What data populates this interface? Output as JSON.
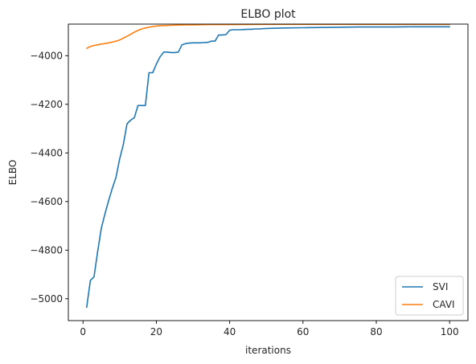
{
  "chart_data": {
    "type": "line",
    "title": "ELBO plot",
    "xlabel": "iterations",
    "ylabel": "ELBO",
    "xlim": [
      -4.0,
      105.0
    ],
    "ylim": [
      -5090,
      -3870
    ],
    "xticks": [
      0,
      20,
      40,
      60,
      80,
      100
    ],
    "yticks": [
      -5000,
      -4800,
      -4600,
      -4400,
      -4200,
      -4000
    ],
    "grid": false,
    "legend_position": "lower-right",
    "series": [
      {
        "name": "SVI",
        "color": "#1f77b4",
        "x": [
          1,
          2,
          3,
          4,
          5,
          6,
          7,
          8,
          9,
          10,
          11,
          12,
          13,
          14,
          15,
          16,
          17,
          18,
          19,
          20,
          21,
          22,
          23,
          24,
          25,
          26,
          27,
          28,
          29,
          30,
          31,
          32,
          33,
          34,
          35,
          36,
          37,
          38,
          39,
          40,
          41,
          42,
          43,
          44,
          45,
          46,
          47,
          48,
          50,
          55,
          60,
          65,
          70,
          75,
          80,
          85,
          90,
          95,
          100
        ],
        "y": [
          -5035,
          -4925,
          -4910,
          -4805,
          -4710,
          -4650,
          -4595,
          -4545,
          -4500,
          -4425,
          -4365,
          -4280,
          -4265,
          -4255,
          -4205,
          -4205,
          -4205,
          -4070,
          -4070,
          -4035,
          -4005,
          -3985,
          -3985,
          -3987,
          -3987,
          -3985,
          -3955,
          -3950,
          -3948,
          -3947,
          -3947,
          -3947,
          -3946,
          -3945,
          -3940,
          -3940,
          -3915,
          -3915,
          -3913,
          -3895,
          -3893,
          -3893,
          -3893,
          -3892,
          -3891,
          -3891,
          -3890,
          -3890,
          -3888,
          -3886,
          -3885,
          -3884,
          -3883,
          -3882,
          -3882,
          -3882,
          -3881,
          -3881,
          -3881
        ]
      },
      {
        "name": "CAVI",
        "color": "#ff7f0e",
        "x": [
          1,
          2,
          3,
          4,
          5,
          6,
          7,
          8,
          9,
          10,
          11,
          12,
          13,
          14,
          15,
          16,
          17,
          18,
          19,
          20,
          22,
          24,
          26,
          28,
          30,
          35,
          40,
          50,
          60,
          70,
          80,
          90,
          100
        ],
        "y": [
          -3970,
          -3962,
          -3958,
          -3955,
          -3952,
          -3950,
          -3947,
          -3944,
          -3940,
          -3935,
          -3928,
          -3920,
          -3912,
          -3903,
          -3896,
          -3890,
          -3886,
          -3883,
          -3880,
          -3878,
          -3876,
          -3875,
          -3874,
          -3873,
          -3873,
          -3872,
          -3872,
          -3871,
          -3871,
          -3871,
          -3871,
          -3871,
          -3871
        ]
      }
    ]
  }
}
